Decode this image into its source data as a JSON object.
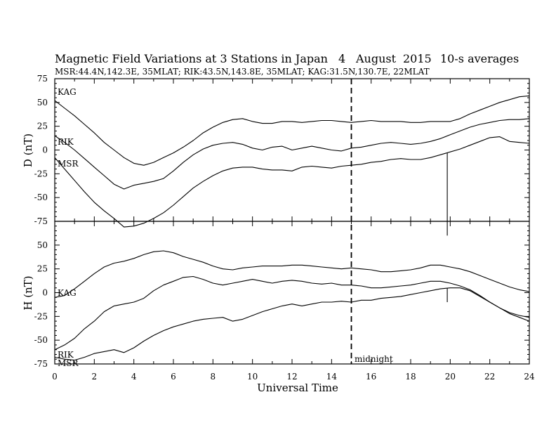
{
  "title": "Magnetic Field Variations at 3 Stations in Japan",
  "date": {
    "day": "4",
    "month": "August",
    "year": "2015"
  },
  "averaging": "10-s averages",
  "stations_line": "MSR:44.4N,142.3E, 35MLAT;   RIK:43.5N,143.8E, 35MLAT;   KAG:31.5N,130.7E, 22MLAT",
  "chart_data": [
    {
      "type": "line",
      "panel": "top",
      "ylabel": "D (nT)",
      "ylim": [
        -75,
        75
      ],
      "yticks": [
        -75,
        -50,
        -25,
        0,
        25,
        50,
        75
      ],
      "xlim": [
        0,
        24
      ],
      "series": [
        {
          "name": "KAG",
          "x": [
            0,
            0.5,
            1,
            1.5,
            2,
            2.5,
            3,
            3.5,
            4,
            4.5,
            5,
            5.5,
            6,
            6.5,
            7,
            7.5,
            8,
            8.5,
            9,
            9.5,
            10,
            10.5,
            11,
            11.5,
            12,
            12.5,
            13,
            13.5,
            14,
            14.5,
            15,
            15.5,
            16,
            16.5,
            17,
            17.5,
            18,
            18.5,
            19,
            19.5,
            20,
            20.5,
            21,
            21.5,
            22,
            22.5,
            23,
            23.5,
            24
          ],
          "y": [
            52,
            44,
            36,
            27,
            18,
            8,
            0,
            -8,
            -14,
            -16,
            -13,
            -8,
            -3,
            3,
            10,
            18,
            24,
            29,
            32,
            33,
            30,
            28,
            28,
            30,
            30,
            29,
            30,
            31,
            31,
            30,
            29,
            30,
            31,
            30,
            30,
            30,
            29,
            29,
            30,
            30,
            30,
            33,
            38,
            42,
            46,
            50,
            53,
            56,
            57
          ]
        },
        {
          "name": "RIK",
          "x": [
            0,
            0.5,
            1,
            1.5,
            2,
            2.5,
            3,
            3.5,
            4,
            4.5,
            5,
            5.5,
            6,
            6.5,
            7,
            7.5,
            8,
            8.5,
            9,
            9.5,
            10,
            10.5,
            11,
            11.5,
            12,
            12.5,
            13,
            13.5,
            14,
            14.5,
            15,
            15.5,
            16,
            16.5,
            17,
            17.5,
            18,
            18.5,
            19,
            19.5,
            20,
            20.5,
            21,
            21.5,
            22,
            22.5,
            23,
            23.5,
            24
          ],
          "y": [
            15,
            8,
            0,
            -9,
            -18,
            -27,
            -36,
            -41,
            -37,
            -35,
            -33,
            -30,
            -22,
            -13,
            -5,
            1,
            5,
            7,
            8,
            6,
            2,
            0,
            3,
            4,
            0,
            2,
            4,
            2,
            0,
            -1,
            2,
            3,
            5,
            7,
            8,
            7,
            6,
            7,
            9,
            12,
            16,
            20,
            24,
            27,
            29,
            31,
            32,
            32,
            33
          ]
        },
        {
          "name": "MSR",
          "x": [
            0,
            0.5,
            1,
            1.5,
            2,
            2.5,
            3,
            3.5,
            4,
            4.5,
            5,
            5.5,
            6,
            6.5,
            7,
            7.5,
            8,
            8.5,
            9,
            9.5,
            10,
            10.5,
            11,
            11.5,
            12,
            12.5,
            13,
            13.5,
            14,
            14.5,
            15,
            15.5,
            16,
            16.5,
            17,
            17.5,
            18,
            18.5,
            19,
            19.5,
            20,
            20.5,
            21,
            21.5,
            22,
            22.5,
            23,
            23.5,
            24
          ],
          "y": [
            -8,
            -20,
            -32,
            -44,
            -55,
            -64,
            -72,
            -81,
            -80,
            -77,
            -72,
            -66,
            -58,
            -49,
            -40,
            -33,
            -27,
            -22,
            -19,
            -18,
            -18,
            -20,
            -21,
            -21,
            -22,
            -18,
            -17,
            -18,
            -19,
            -17,
            -16,
            -15,
            -13,
            -12,
            -10,
            -9,
            -10,
            -10,
            -8,
            -5,
            -2,
            1,
            5,
            9,
            13,
            14,
            9,
            8,
            7
          ],
          "spike": {
            "x": 19.85,
            "y": -90
          }
        }
      ]
    },
    {
      "type": "line",
      "panel": "bottom",
      "ylabel": "H (nT)",
      "xlabel": "Universal Time",
      "ylim": [
        -75,
        75
      ],
      "yticks": [
        -75,
        -50,
        -25,
        0,
        25,
        50
      ],
      "xlim": [
        0,
        24
      ],
      "xticks": [
        0,
        2,
        4,
        6,
        8,
        10,
        12,
        14,
        16,
        18,
        20,
        22,
        24
      ],
      "series": [
        {
          "name": "KAG",
          "x": [
            0,
            0.5,
            1,
            1.5,
            2,
            2.5,
            3,
            3.5,
            4,
            4.5,
            5,
            5.5,
            6,
            6.5,
            7,
            7.5,
            8,
            8.5,
            9,
            9.5,
            10,
            10.5,
            11,
            11.5,
            12,
            12.5,
            13,
            13.5,
            14,
            14.5,
            15,
            15.5,
            16,
            16.5,
            17,
            17.5,
            18,
            18.5,
            19,
            19.5,
            20,
            20.5,
            21,
            21.5,
            22,
            22.5,
            23,
            23.5,
            24
          ],
          "y": [
            -5,
            -3,
            4,
            12,
            20,
            27,
            31,
            33,
            36,
            40,
            43,
            44,
            42,
            38,
            35,
            32,
            28,
            25,
            24,
            26,
            27,
            28,
            28,
            28,
            29,
            29,
            28,
            27,
            26,
            25,
            26,
            25,
            24,
            22,
            22,
            23,
            24,
            26,
            29,
            29,
            27,
            25,
            22,
            18,
            14,
            10,
            6,
            3,
            1
          ]
        },
        {
          "name": "RIK",
          "x": [
            0,
            0.5,
            1,
            1.5,
            2,
            2.5,
            3,
            3.5,
            4,
            4.5,
            5,
            5.5,
            6,
            6.5,
            7,
            7.5,
            8,
            8.5,
            9,
            9.5,
            10,
            10.5,
            11,
            11.5,
            12,
            12.5,
            13,
            13.5,
            14,
            14.5,
            15,
            15.5,
            16,
            16.5,
            17,
            17.5,
            18,
            18.5,
            19,
            19.5,
            20,
            20.5,
            21,
            21.5,
            22,
            22.5,
            23,
            23.5,
            24
          ],
          "y": [
            -60,
            -55,
            -48,
            -38,
            -30,
            -20,
            -14,
            -12,
            -10,
            -6,
            2,
            8,
            12,
            16,
            17,
            14,
            10,
            8,
            10,
            12,
            14,
            12,
            10,
            12,
            13,
            12,
            10,
            9,
            10,
            8,
            8,
            7,
            5,
            5,
            6,
            7,
            8,
            10,
            12,
            12,
            10,
            7,
            3,
            -3,
            -10,
            -16,
            -21,
            -24,
            -26
          ]
        },
        {
          "name": "MSR",
          "x": [
            0,
            0.5,
            1,
            1.5,
            2,
            2.5,
            3,
            3.5,
            4,
            4.5,
            5,
            5.5,
            6,
            6.5,
            7,
            7.5,
            8,
            8.5,
            9,
            9.5,
            10,
            10.5,
            11,
            11.5,
            12,
            12.5,
            13,
            13.5,
            14,
            14.5,
            15,
            15.5,
            16,
            16.5,
            17,
            17.5,
            18,
            18.5,
            19,
            19.5,
            20,
            20.5,
            21,
            21.5,
            22,
            22.5,
            23,
            23.5,
            24
          ],
          "y": [
            -68,
            -70,
            -71,
            -68,
            -64,
            -62,
            -60,
            -63,
            -58,
            -51,
            -45,
            -40,
            -36,
            -33,
            -30,
            -28,
            -27,
            -26,
            -30,
            -28,
            -24,
            -20,
            -17,
            -14,
            -12,
            -14,
            -12,
            -10,
            -10,
            -9,
            -10,
            -8,
            -8,
            -6,
            -5,
            -4,
            -2,
            0,
            2,
            4,
            5,
            5,
            2,
            -4,
            -10,
            -16,
            -22,
            -26,
            -30
          ],
          "spike": {
            "x": 19.85,
            "y": -10
          }
        }
      ]
    }
  ],
  "x_tick_labels": [
    "0",
    "2",
    "4",
    "6",
    "8",
    "10",
    "12",
    "14",
    "16",
    "18",
    "20",
    "22",
    "24"
  ],
  "top_y_tick_labels": [
    "75",
    "50",
    "25",
    "0",
    "-25",
    "-50",
    "-75"
  ],
  "bottom_y_tick_labels": [
    "50",
    "25",
    "0",
    "-25",
    "-50",
    "-75"
  ],
  "midnight": {
    "x": 15,
    "label": "midnight"
  },
  "station_labels": {
    "top": [
      "KAG",
      "RIK",
      "MSR"
    ],
    "bottom": [
      "KAG",
      "RIK",
      "MSR"
    ]
  }
}
